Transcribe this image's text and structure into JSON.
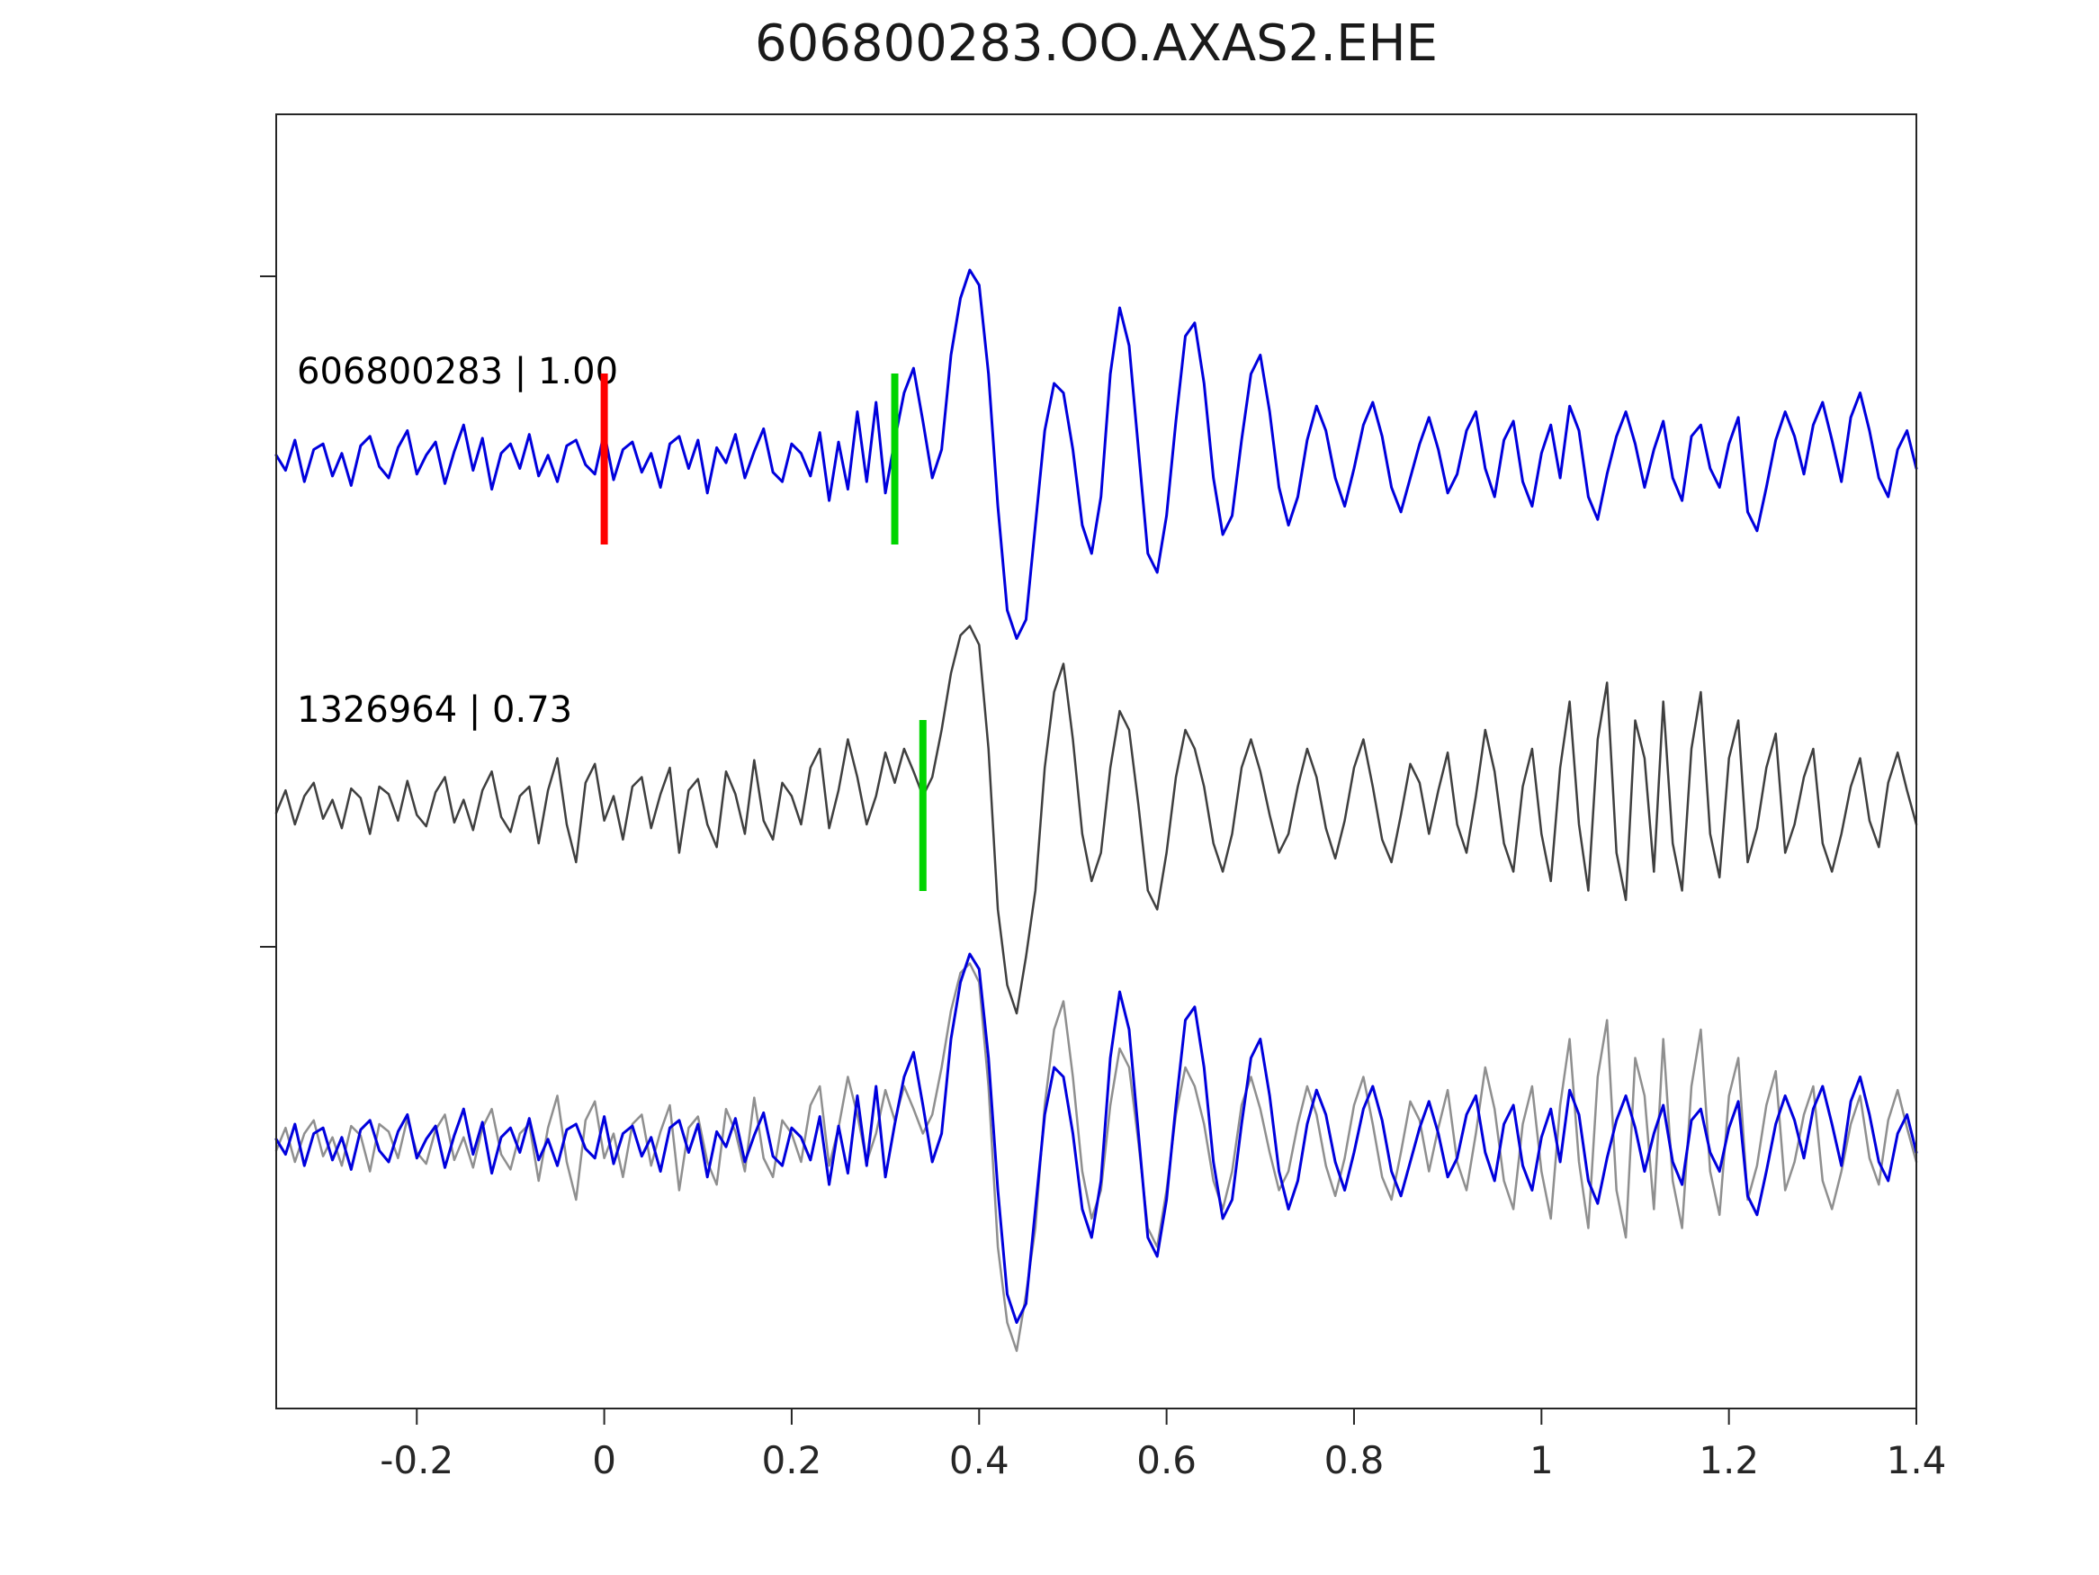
{
  "title": "606800283.OO.AXAS2.EHE",
  "chart_data": {
    "type": "line",
    "title": "606800283.OO.AXAS2.EHE",
    "subtitle": "",
    "xlabel": "",
    "ylabel": "",
    "xlim": [
      -0.35,
      1.4
    ],
    "x_ticks": [
      -0.2,
      0,
      0.2,
      0.4,
      0.6,
      0.8,
      1,
      1.2,
      1.4
    ],
    "x_tick_labels": [
      "-0.2",
      "0",
      "0.2",
      "0.4",
      "0.6",
      "0.8",
      "1",
      "1.2",
      "1.4"
    ],
    "grid": false,
    "legend": "none",
    "x_start": -0.35,
    "x_step": 0.01,
    "colors": {
      "template_blue": "#0000dd",
      "detection_gray": "#3f3f3f",
      "overlay_gray": "#8f8f8f",
      "pick_red": "#ff0000",
      "pick_green": "#00d400",
      "axis": "#262626"
    },
    "rows": [
      {
        "name": "template-row",
        "label": "606800283 | 1.00",
        "series": [
          "template"
        ],
        "series_colors": [
          "#0000dd"
        ],
        "series_widths": [
          3
        ],
        "markers": [
          {
            "x": 0.0,
            "color": "#ff0000",
            "name": "red-pick-marker"
          },
          {
            "x": 0.31,
            "color": "#00d400",
            "name": "green-pick-marker"
          }
        ]
      },
      {
        "name": "detection-row",
        "label": "1326964 | 0.73",
        "series": [
          "detection"
        ],
        "series_colors": [
          "#3f3f3f"
        ],
        "series_widths": [
          2.5
        ],
        "markers": [
          {
            "x": 0.34,
            "color": "#00d400",
            "name": "green-pick-marker"
          }
        ]
      },
      {
        "name": "overlay-row",
        "label": "",
        "series": [
          "detection",
          "template"
        ],
        "series_colors": [
          "#8f8f8f",
          "#0000dd"
        ],
        "series_widths": [
          2.5,
          3
        ],
        "markers": []
      }
    ],
    "series": {
      "template": [
        0.02,
        -0.06,
        0.1,
        -0.12,
        0.05,
        0.08,
        -0.09,
        0.03,
        -0.14,
        0.07,
        0.12,
        -0.04,
        -0.1,
        0.06,
        0.15,
        -0.08,
        0.02,
        0.09,
        -0.13,
        0.04,
        0.18,
        -0.06,
        0.11,
        -0.16,
        0.03,
        0.08,
        -0.05,
        0.13,
        -0.09,
        0.02,
        -0.12,
        0.07,
        0.1,
        -0.03,
        -0.08,
        0.14,
        -0.11,
        0.05,
        0.09,
        -0.07,
        0.03,
        -0.15,
        0.08,
        0.12,
        -0.05,
        0.1,
        -0.18,
        0.06,
        -0.02,
        0.13,
        -0.1,
        0.04,
        0.16,
        -0.07,
        -0.12,
        0.08,
        0.03,
        -0.09,
        0.14,
        -0.22,
        0.09,
        -0.16,
        0.25,
        -0.12,
        0.3,
        -0.18,
        0.1,
        0.35,
        0.48,
        0.2,
        -0.1,
        0.05,
        0.55,
        0.85,
        1.0,
        0.92,
        0.45,
        -0.25,
        -0.8,
        -0.95,
        -0.85,
        -0.35,
        0.15,
        0.4,
        0.35,
        0.05,
        -0.35,
        -0.5,
        -0.2,
        0.45,
        0.8,
        0.6,
        0.05,
        -0.5,
        -0.6,
        -0.3,
        0.2,
        0.65,
        0.72,
        0.4,
        -0.1,
        -0.4,
        -0.3,
        0.1,
        0.45,
        0.55,
        0.25,
        -0.15,
        -0.35,
        -0.2,
        0.1,
        0.28,
        0.15,
        -0.1,
        -0.25,
        -0.05,
        0.18,
        0.3,
        0.12,
        -0.15,
        -0.28,
        -0.1,
        0.08,
        0.22,
        0.05,
        -0.18,
        -0.08,
        0.15,
        0.25,
        -0.05,
        -0.2,
        0.1,
        0.2,
        -0.12,
        -0.25,
        0.03,
        0.18,
        -0.1,
        0.28,
        0.15,
        -0.2,
        -0.32,
        -0.08,
        0.12,
        0.25,
        0.08,
        -0.15,
        0.05,
        0.2,
        -0.1,
        -0.22,
        0.12,
        0.18,
        -0.05,
        -0.15,
        0.08,
        0.22,
        -0.28,
        -0.38,
        -0.15,
        0.1,
        0.25,
        0.12,
        -0.08,
        0.18,
        0.3,
        0.1,
        -0.12,
        0.22,
        0.35,
        0.15,
        -0.1,
        -0.2,
        0.05,
        0.15,
        -0.05
      ],
      "detection": [
        -0.04,
        0.08,
        -0.1,
        0.05,
        0.12,
        -0.07,
        0.03,
        -0.12,
        0.09,
        0.04,
        -0.15,
        0.1,
        0.06,
        -0.08,
        0.13,
        -0.05,
        -0.11,
        0.07,
        0.15,
        -0.09,
        0.03,
        -0.13,
        0.08,
        0.18,
        -0.06,
        -0.14,
        0.05,
        0.1,
        -0.2,
        0.08,
        0.25,
        -0.1,
        -0.3,
        0.12,
        0.22,
        -0.08,
        0.05,
        -0.18,
        0.1,
        0.15,
        -0.12,
        0.06,
        0.2,
        -0.25,
        0.08,
        0.14,
        -0.1,
        -0.22,
        0.18,
        0.06,
        -0.15,
        0.24,
        -0.08,
        -0.18,
        0.12,
        0.05,
        -0.1,
        0.2,
        0.3,
        -0.12,
        0.08,
        0.35,
        0.15,
        -0.1,
        0.05,
        0.28,
        0.12,
        0.3,
        0.18,
        0.05,
        0.15,
        0.4,
        0.7,
        0.9,
        0.95,
        0.85,
        0.3,
        -0.55,
        -0.95,
        -1.1,
        -0.8,
        -0.45,
        0.2,
        0.6,
        0.75,
        0.35,
        -0.15,
        -0.4,
        -0.25,
        0.2,
        0.5,
        0.4,
        0.0,
        -0.45,
        -0.55,
        -0.25,
        0.15,
        0.4,
        0.3,
        0.1,
        -0.2,
        -0.35,
        -0.15,
        0.2,
        0.35,
        0.18,
        -0.05,
        -0.25,
        -0.15,
        0.1,
        0.3,
        0.15,
        -0.12,
        -0.28,
        -0.08,
        0.2,
        0.35,
        0.1,
        -0.18,
        -0.3,
        -0.05,
        0.22,
        0.12,
        -0.15,
        0.08,
        0.28,
        -0.1,
        -0.25,
        0.05,
        0.4,
        0.18,
        -0.2,
        -0.35,
        0.1,
        0.3,
        -0.15,
        -0.4,
        0.2,
        0.55,
        -0.1,
        -0.45,
        0.35,
        0.65,
        -0.25,
        -0.5,
        0.45,
        0.25,
        -0.35,
        0.55,
        -0.2,
        -0.45,
        0.3,
        0.6,
        -0.15,
        -0.38,
        0.25,
        0.45,
        -0.3,
        -0.12,
        0.2,
        0.38,
        -0.25,
        -0.1,
        0.15,
        0.3,
        -0.2,
        -0.35,
        -0.15,
        0.1,
        0.25,
        -0.08,
        -0.22,
        0.12,
        0.28,
        0.08,
        -0.1
      ]
    }
  }
}
